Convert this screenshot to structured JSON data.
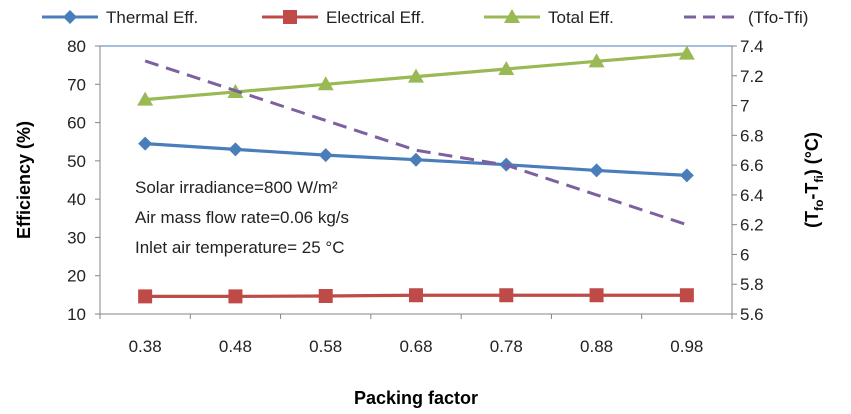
{
  "chart_data": {
    "type": "line",
    "x": [
      0.38,
      0.48,
      0.58,
      0.68,
      0.78,
      0.88,
      0.98
    ],
    "x_tick_labels": [
      "0.38",
      "0.48",
      "0.58",
      "0.68",
      "0.78",
      "0.88",
      "0.98"
    ],
    "xlabel": "Packing factor",
    "ylabel": "Efficiency (%)",
    "ylim": [
      10,
      80
    ],
    "y_ticks": [
      "10",
      "20",
      "30",
      "40",
      "50",
      "60",
      "70",
      "80"
    ],
    "y2label_main": "(T",
    "y2label_sub1": "fo",
    "y2label_mid": "-T",
    "y2label_sub2": "fi",
    "y2label_end": ") (°C)",
    "y2lim": [
      5.6,
      7.4
    ],
    "y2_ticks": [
      "5.6",
      "5.8",
      "6",
      "6.2",
      "6.4",
      "6.6",
      "6.8",
      "7",
      "7.2",
      "7.4"
    ],
    "legend_position": "top",
    "grid": false,
    "series": [
      {
        "name": "Thermal Eff.",
        "axis": "left",
        "marker": "diamond",
        "color": "#4A7EBB",
        "values": [
          54.5,
          53.0,
          51.5,
          50.3,
          49.0,
          47.5,
          46.2
        ]
      },
      {
        "name": "Electrical Eff.",
        "axis": "left",
        "marker": "square",
        "color": "#BE4B48",
        "values": [
          14.6,
          14.6,
          14.7,
          14.9,
          14.9,
          14.9,
          14.9
        ]
      },
      {
        "name": "Total Eff.",
        "axis": "left",
        "marker": "triangle",
        "color": "#98B954",
        "values": [
          66.0,
          68.0,
          70.0,
          72.0,
          74.0,
          76.0,
          78.0
        ]
      },
      {
        "name": "(Tfo-Tfi)",
        "axis": "right",
        "marker": "none",
        "dash": true,
        "color": "#7D60A0",
        "values": [
          7.3,
          7.1,
          6.9,
          6.7,
          6.6,
          6.4,
          6.2
        ]
      }
    ],
    "annotations": [
      "Solar irradiance=800 W/m²",
      "Air mass flow rate=0.06 kg/s",
      "Inlet air temperature= 25 °C"
    ]
  }
}
